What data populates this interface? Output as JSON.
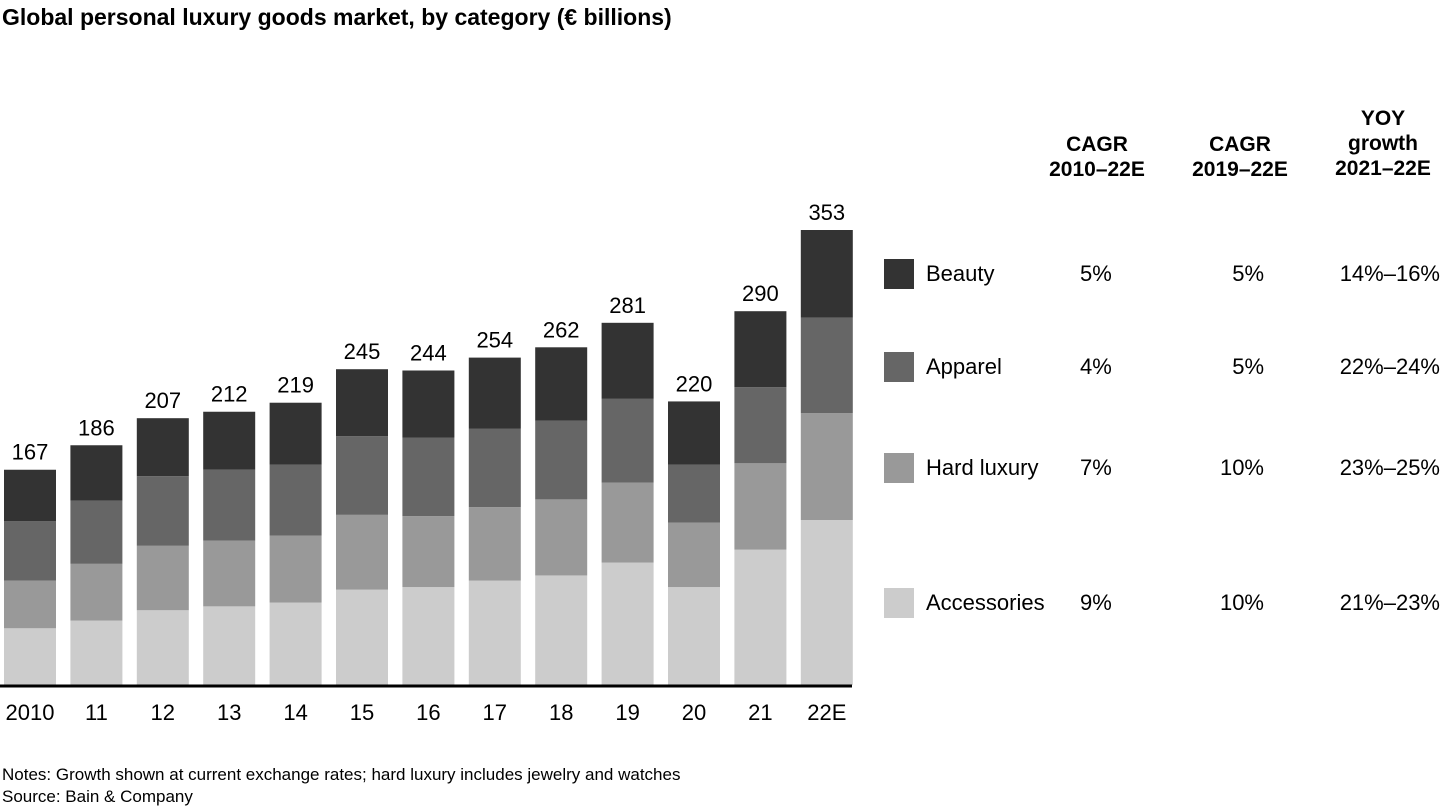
{
  "title": "Global personal luxury goods market, by category (€ billions)",
  "table": {
    "headers": [
      "CAGR\n2010–22E",
      "CAGR\n2019–22E",
      "YOY\ngrowth\n2021–22E"
    ],
    "rows": [
      {
        "category": "Beauty",
        "color": "#333333",
        "cagr_2010_22": "5%",
        "cagr_2019_22": "5%",
        "yoy": "14%–16%"
      },
      {
        "category": "Apparel",
        "color": "#666666",
        "cagr_2010_22": "4%",
        "cagr_2019_22": "5%",
        "yoy": "22%–24%"
      },
      {
        "category": "Hard luxury",
        "color": "#999999",
        "cagr_2010_22": "7%",
        "cagr_2019_22": "10%",
        "yoy": "23%–25%"
      },
      {
        "category": "Accessories",
        "color": "#cccccc",
        "cagr_2010_22": "9%",
        "cagr_2019_22": "10%",
        "yoy": "21%–23%"
      }
    ]
  },
  "notes": {
    "line1": "Notes: Growth shown at current exchange rates; hard luxury includes jewelry and watches",
    "line2": "Source: Bain & Company"
  },
  "chart_data": {
    "type": "bar",
    "stacked": true,
    "categories": [
      "2010",
      "11",
      "12",
      "13",
      "14",
      "15",
      "16",
      "17",
      "18",
      "19",
      "20",
      "21",
      "22E"
    ],
    "totals": [
      167,
      186,
      207,
      212,
      219,
      245,
      244,
      254,
      262,
      281,
      220,
      290,
      353
    ],
    "series": [
      {
        "name": "Accessories",
        "color": "#cccccc",
        "values": [
          44,
          50,
          58,
          61,
          64,
          74,
          76,
          81,
          85,
          95,
          76,
          105,
          128
        ]
      },
      {
        "name": "Hard luxury",
        "color": "#999999",
        "values": [
          37,
          44,
          50,
          51,
          52,
          58,
          55,
          57,
          59,
          62,
          50,
          67,
          83
        ]
      },
      {
        "name": "Apparel",
        "color": "#666666",
        "values": [
          46,
          49,
          54,
          55,
          55,
          61,
          61,
          61,
          61,
          65,
          45,
          59,
          74
        ]
      },
      {
        "name": "Beauty",
        "color": "#333333",
        "values": [
          40,
          43,
          45,
          45,
          48,
          52,
          52,
          55,
          57,
          59,
          49,
          59,
          68
        ]
      }
    ],
    "ylim": [
      0,
      353
    ]
  }
}
